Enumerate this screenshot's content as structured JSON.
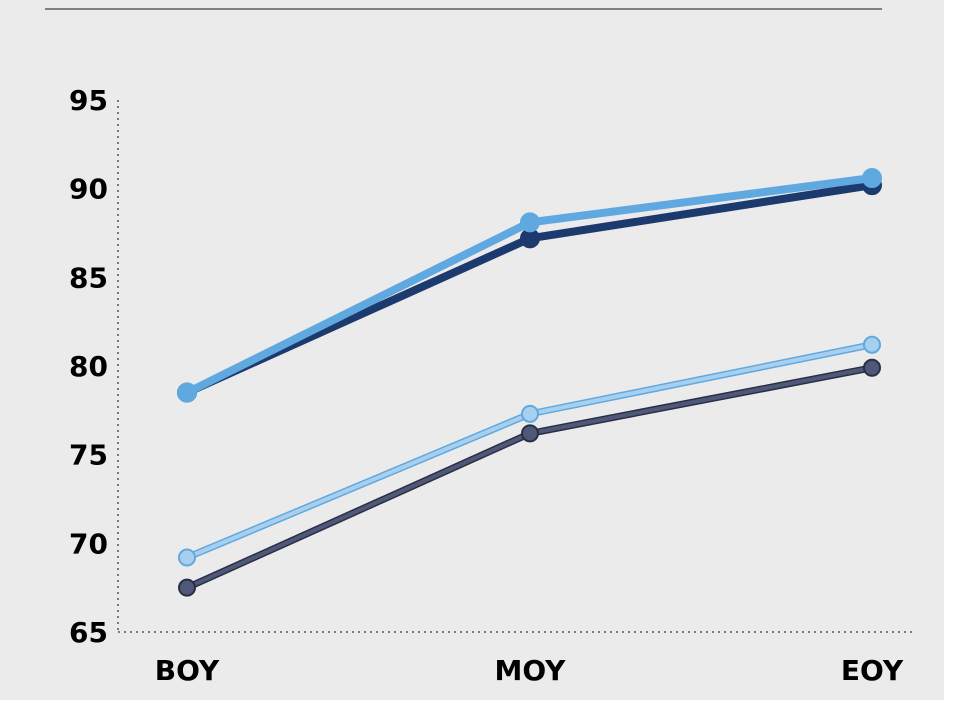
{
  "chart_data": {
    "type": "line",
    "categories": [
      "BOY",
      "MOY",
      "EOY"
    ],
    "ylim": [
      65,
      95
    ],
    "yticks": [
      "95",
      "90",
      "85",
      "80",
      "75",
      "70",
      "65"
    ],
    "grid": false,
    "legend": "none",
    "series": [
      {
        "values": [
          78.5,
          87.2,
          90.2
        ],
        "color": "#1c3a6e",
        "stroke": "#1c3a6e",
        "style": "thick"
      },
      {
        "values": [
          78.5,
          88.1,
          90.6
        ],
        "color": "#5fa9e0",
        "stroke": "#5fa9e0",
        "style": "thick"
      },
      {
        "values": [
          69.2,
          77.3,
          81.2
        ],
        "color": "#a9cfee",
        "stroke": "#5fa9e0",
        "style": "thin"
      },
      {
        "values": [
          67.5,
          76.2,
          79.9
        ],
        "color": "#4f5878",
        "stroke": "#2a2f45",
        "style": "thin"
      }
    ]
  }
}
